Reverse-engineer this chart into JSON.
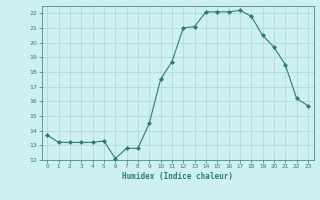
{
  "x": [
    0,
    1,
    2,
    3,
    4,
    5,
    6,
    7,
    8,
    9,
    10,
    11,
    12,
    13,
    14,
    15,
    16,
    17,
    18,
    19,
    20,
    21,
    22,
    23
  ],
  "y": [
    13.7,
    13.2,
    13.2,
    13.2,
    13.2,
    13.3,
    12.1,
    12.8,
    12.8,
    14.5,
    17.5,
    18.7,
    21.0,
    21.1,
    22.1,
    22.1,
    22.1,
    22.2,
    21.8,
    20.5,
    19.7,
    18.5,
    16.2,
    15.7
  ],
  "line_color": "#2e7d6e",
  "marker": "D",
  "marker_size": 2,
  "bg_color": "#cff0f0",
  "grid_color": "#aad8d8",
  "xlabel": "Humidex (Indice chaleur)",
  "xlim": [
    -0.5,
    23.5
  ],
  "ylim": [
    12,
    22.5
  ],
  "yticks": [
    12,
    13,
    14,
    15,
    16,
    17,
    18,
    19,
    20,
    21,
    22
  ],
  "xticks": [
    0,
    1,
    2,
    3,
    4,
    5,
    6,
    7,
    8,
    9,
    10,
    11,
    12,
    13,
    14,
    15,
    16,
    17,
    18,
    19,
    20,
    21,
    22,
    23
  ]
}
